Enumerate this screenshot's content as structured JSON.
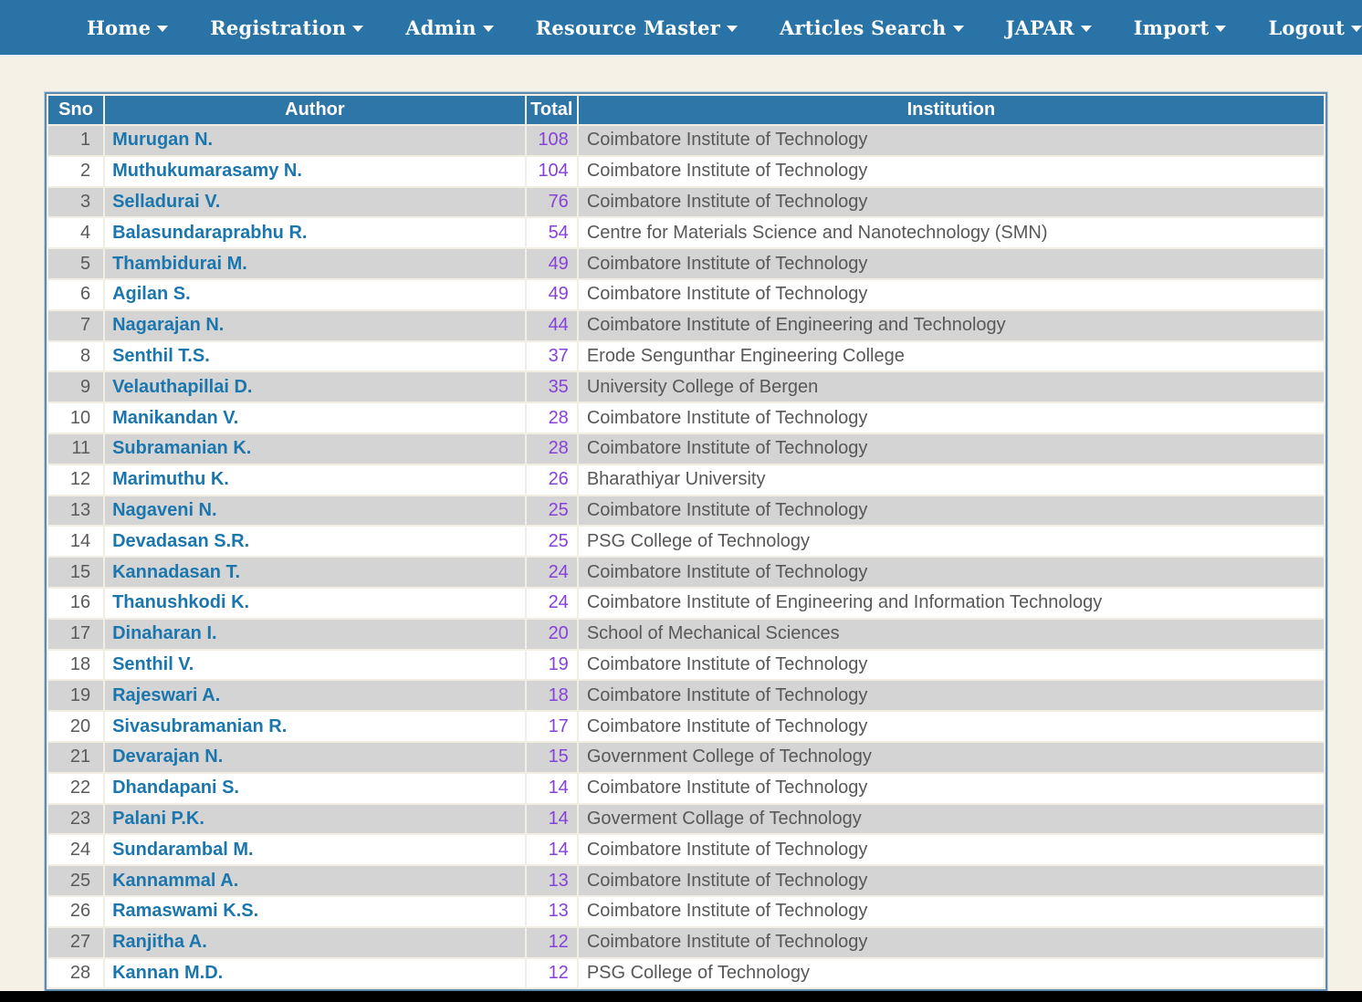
{
  "nav": {
    "items": [
      {
        "label": "Home",
        "dropdown": false
      },
      {
        "label": "Registration",
        "dropdown": true
      },
      {
        "label": "Admin",
        "dropdown": true
      },
      {
        "label": "Resource Master",
        "dropdown": true
      },
      {
        "label": "Articles Search",
        "dropdown": true
      },
      {
        "label": "JAPAR",
        "dropdown": true
      },
      {
        "label": "Import",
        "dropdown": true
      },
      {
        "label": "Logout",
        "dropdown": false
      }
    ]
  },
  "table": {
    "columns": [
      "Sno",
      "Author",
      "Total",
      "Institution"
    ],
    "rows": [
      {
        "sno": 1,
        "author": "Murugan N.",
        "total": 108,
        "institution": "Coimbatore Institute of Technology"
      },
      {
        "sno": 2,
        "author": "Muthukumarasamy N.",
        "total": 104,
        "institution": "Coimbatore Institute of Technology"
      },
      {
        "sno": 3,
        "author": "Selladurai V.",
        "total": 76,
        "institution": "Coimbatore Institute of Technology"
      },
      {
        "sno": 4,
        "author": "Balasundaraprabhu R.",
        "total": 54,
        "institution": "Centre for Materials Science and Nanotechnology (SMN)"
      },
      {
        "sno": 5,
        "author": "Thambidurai M.",
        "total": 49,
        "institution": "Coimbatore Institute of Technology"
      },
      {
        "sno": 6,
        "author": "Agilan S.",
        "total": 49,
        "institution": "Coimbatore Institute of Technology"
      },
      {
        "sno": 7,
        "author": "Nagarajan N.",
        "total": 44,
        "institution": "Coimbatore Institute of Engineering and Technology"
      },
      {
        "sno": 8,
        "author": "Senthil T.S.",
        "total": 37,
        "institution": "Erode Sengunthar Engineering College"
      },
      {
        "sno": 9,
        "author": "Velauthapillai D.",
        "total": 35,
        "institution": "University College of Bergen"
      },
      {
        "sno": 10,
        "author": "Manikandan V.",
        "total": 28,
        "institution": "Coimbatore Institute of Technology"
      },
      {
        "sno": 11,
        "author": "Subramanian K.",
        "total": 28,
        "institution": "Coimbatore Institute of Technology"
      },
      {
        "sno": 12,
        "author": "Marimuthu K.",
        "total": 26,
        "institution": "Bharathiyar University"
      },
      {
        "sno": 13,
        "author": "Nagaveni N.",
        "total": 25,
        "institution": "Coimbatore Institute of Technology"
      },
      {
        "sno": 14,
        "author": "Devadasan S.R.",
        "total": 25,
        "institution": "PSG College of Technology"
      },
      {
        "sno": 15,
        "author": "Kannadasan T.",
        "total": 24,
        "institution": "Coimbatore Institute of Technology"
      },
      {
        "sno": 16,
        "author": "Thanushkodi K.",
        "total": 24,
        "institution": "Coimbatore Institute of Engineering and Information Technology"
      },
      {
        "sno": 17,
        "author": "Dinaharan I.",
        "total": 20,
        "institution": "School of Mechanical Sciences"
      },
      {
        "sno": 18,
        "author": "Senthil V.",
        "total": 19,
        "institution": "Coimbatore Institute of Technology"
      },
      {
        "sno": 19,
        "author": "Rajeswari A.",
        "total": 18,
        "institution": "Coimbatore Institute of Technology"
      },
      {
        "sno": 20,
        "author": "Sivasubramanian R.",
        "total": 17,
        "institution": "Coimbatore Institute of Technology"
      },
      {
        "sno": 21,
        "author": "Devarajan N.",
        "total": 15,
        "institution": "Government College of Technology"
      },
      {
        "sno": 22,
        "author": "Dhandapani S.",
        "total": 14,
        "institution": "Coimbatore Institute of Technology"
      },
      {
        "sno": 23,
        "author": "Palani P.K.",
        "total": 14,
        "institution": "Goverment Collage of Technology"
      },
      {
        "sno": 24,
        "author": "Sundarambal M.",
        "total": 14,
        "institution": "Coimbatore Institute of Technology"
      },
      {
        "sno": 25,
        "author": "Kannammal A.",
        "total": 13,
        "institution": "Coimbatore Institute of Technology"
      },
      {
        "sno": 26,
        "author": "Ramaswami K.S.",
        "total": 13,
        "institution": "Coimbatore Institute of Technology"
      },
      {
        "sno": 27,
        "author": "Ranjitha A.",
        "total": 12,
        "institution": "Coimbatore Institute of Technology"
      },
      {
        "sno": 28,
        "author": "Kannan M.D.",
        "total": 12,
        "institution": "PSG College of Technology"
      }
    ]
  },
  "colors": {
    "nav_bg": "#2973a6",
    "header_bg": "#2e75a8",
    "row_alt_bg": "#d4d4d4",
    "row_bg": "#ffffff",
    "author_link": "#1b76ae",
    "total_link": "#8642d8",
    "institution_text": "#58585a",
    "page_bg": "#f5f1e7"
  }
}
